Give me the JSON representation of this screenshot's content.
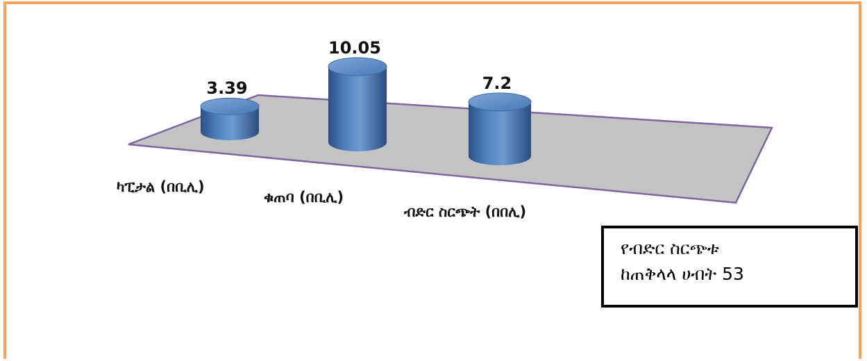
{
  "chart_data": {
    "type": "bar",
    "style": "3d-cylinder",
    "categories": [
      "ካፒታል (በቢሊ)",
      "ቁጠባ (በቢሊ)",
      "ብድር ስርጭት (በበሊ)"
    ],
    "values": [
      3.39,
      10.05,
      7.2
    ],
    "value_labels": [
      "3.39",
      "10.05",
      "7.2"
    ],
    "title": "",
    "xlabel": "",
    "ylabel": "",
    "grid": false,
    "colors": {
      "bar": "#4f81bd",
      "floor": "#c3c3c3",
      "floor_edge": "#8064a2"
    }
  },
  "note": {
    "line1": "የብድር ስርጭቱ",
    "line2": "ከጠቅላላ ሀብት 53"
  },
  "frame_color": "#f4a460"
}
